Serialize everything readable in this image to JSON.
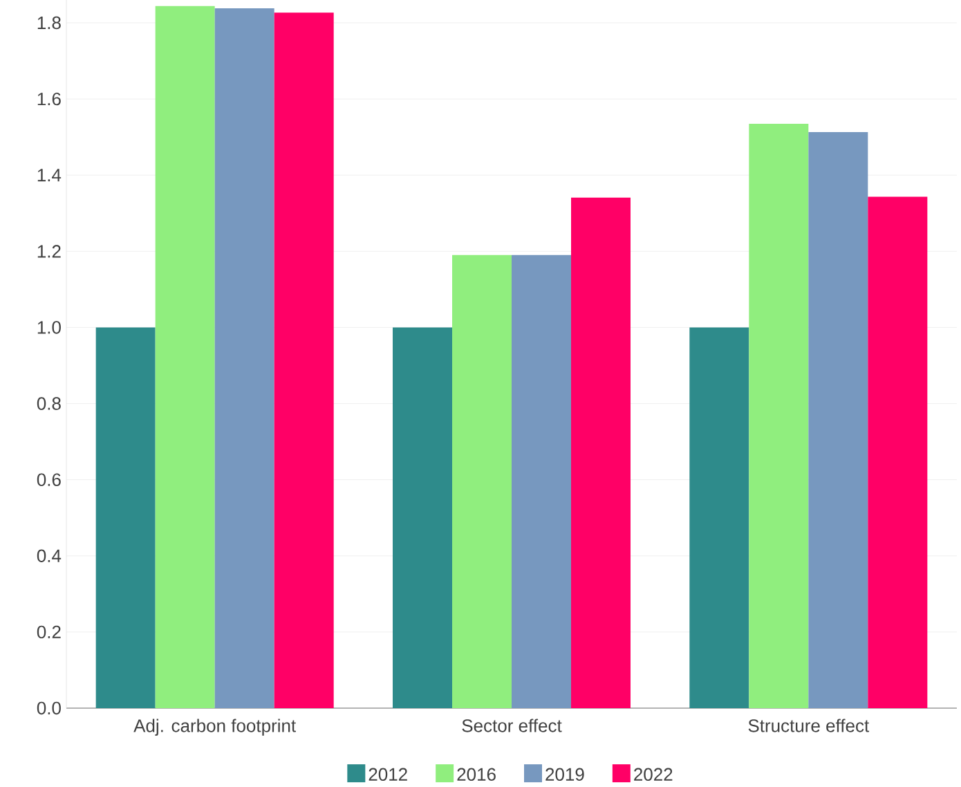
{
  "chart_data": {
    "type": "bar",
    "categories": [
      "Adj. carbon footprint",
      "Sector effect",
      "Structure effect"
    ],
    "series": [
      {
        "name": "2012",
        "color": "#2e8b8b",
        "values": [
          1.0,
          1.0,
          1.0
        ]
      },
      {
        "name": "2016",
        "color": "#90ee7e",
        "values": [
          1.844,
          1.19,
          1.535
        ]
      },
      {
        "name": "2019",
        "color": "#7798bf",
        "values": [
          1.838,
          1.19,
          1.513
        ]
      },
      {
        "name": "2022",
        "color": "#ff0066",
        "values": [
          1.827,
          1.341,
          1.343
        ]
      }
    ],
    "ylim": [
      0,
      1.86
    ],
    "yticks": [
      {
        "value": 0,
        "label": "0.0"
      },
      {
        "value": 0.2,
        "label": "0.2"
      },
      {
        "value": 0.4,
        "label": "0.4"
      },
      {
        "value": 0.6,
        "label": "0.6"
      },
      {
        "value": 0.8,
        "label": "0.8"
      },
      {
        "value": 1.0,
        "label": "1.0"
      },
      {
        "value": 1.2,
        "label": "1.2"
      },
      {
        "value": 1.4,
        "label": "1.4"
      },
      {
        "value": 1.6,
        "label": "1.6"
      },
      {
        "value": 1.8,
        "label": "1.8"
      }
    ],
    "grid": "y",
    "legend": "bottom"
  }
}
